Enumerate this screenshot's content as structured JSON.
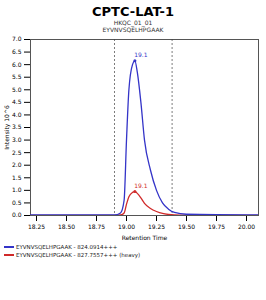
{
  "chart_data": {
    "type": "line",
    "title": "CPTC-LAT-1",
    "subtitle": [
      "HKQC_01_01",
      "EYVNVSQELHPGAAK"
    ],
    "x_label": "Retention Time",
    "y_label": "Intensity 10^6",
    "xlim": [
      18.2,
      20.1
    ],
    "xticks": [
      {
        "value": 18.25,
        "label": "18.25"
      },
      {
        "value": 18.5,
        "label": "18.50"
      },
      {
        "value": 18.75,
        "label": "18.75"
      },
      {
        "value": 19,
        "label": "19.00"
      },
      {
        "value": 19.25,
        "label": "19.25"
      },
      {
        "value": 19.5,
        "label": "19.50"
      },
      {
        "value": 19.75,
        "label": "19.75"
      },
      {
        "value": 20,
        "label": "20.00"
      }
    ],
    "ylim": [
      0,
      7
    ],
    "yticks": [
      {
        "value": 0,
        "label": "0.0"
      },
      0.5,
      {
        "value": 1,
        "label": "1.0"
      },
      1.5,
      {
        "value": 2,
        "label": "2.0"
      },
      2.5,
      {
        "value": 3,
        "label": "3.0"
      },
      3.5,
      {
        "value": 4,
        "label": "4.0"
      },
      4.5,
      {
        "value": 5,
        "label": "5.0"
      },
      5.5,
      {
        "value": 6,
        "label": "6.0"
      },
      6.5,
      {
        "value": 7,
        "label": "7.0"
      }
    ],
    "integration_bounds": [
      18.9,
      19.38
    ],
    "x": [
      18.2,
      18.9,
      18.95,
      18.98,
      19.0,
      19.02,
      19.05,
      19.07,
      19.09,
      19.12,
      19.15,
      19.2,
      19.25,
      19.3,
      19.35,
      19.4,
      19.5,
      20.1
    ],
    "series": [
      {
        "name": "EYVNVSQELHPGAAK - 824.0914+++",
        "color": "#3434c8",
        "values": [
          0.02,
          0.02,
          0.1,
          0.6,
          3.0,
          5.0,
          6.0,
          6.15,
          5.7,
          4.5,
          3.0,
          1.8,
          1.0,
          0.5,
          0.25,
          0.12,
          0.05,
          0.02
        ]
      },
      {
        "name": "EYVNVSQELHPGAAK - 827.7557+++ (heavy)",
        "color": "#d02a2a",
        "values": [
          0.0,
          0.0,
          0.02,
          0.1,
          0.45,
          0.75,
          0.92,
          0.95,
          0.88,
          0.7,
          0.48,
          0.28,
          0.16,
          0.08,
          0.04,
          0.02,
          0.01,
          0.0
        ]
      }
    ],
    "annotations": [
      {
        "x": 19.07,
        "y": 6.15,
        "text": "19.1",
        "color": "#3434c8"
      },
      {
        "x": 19.07,
        "y": 0.95,
        "text": "19.1",
        "color": "#d02a2a"
      }
    ]
  }
}
